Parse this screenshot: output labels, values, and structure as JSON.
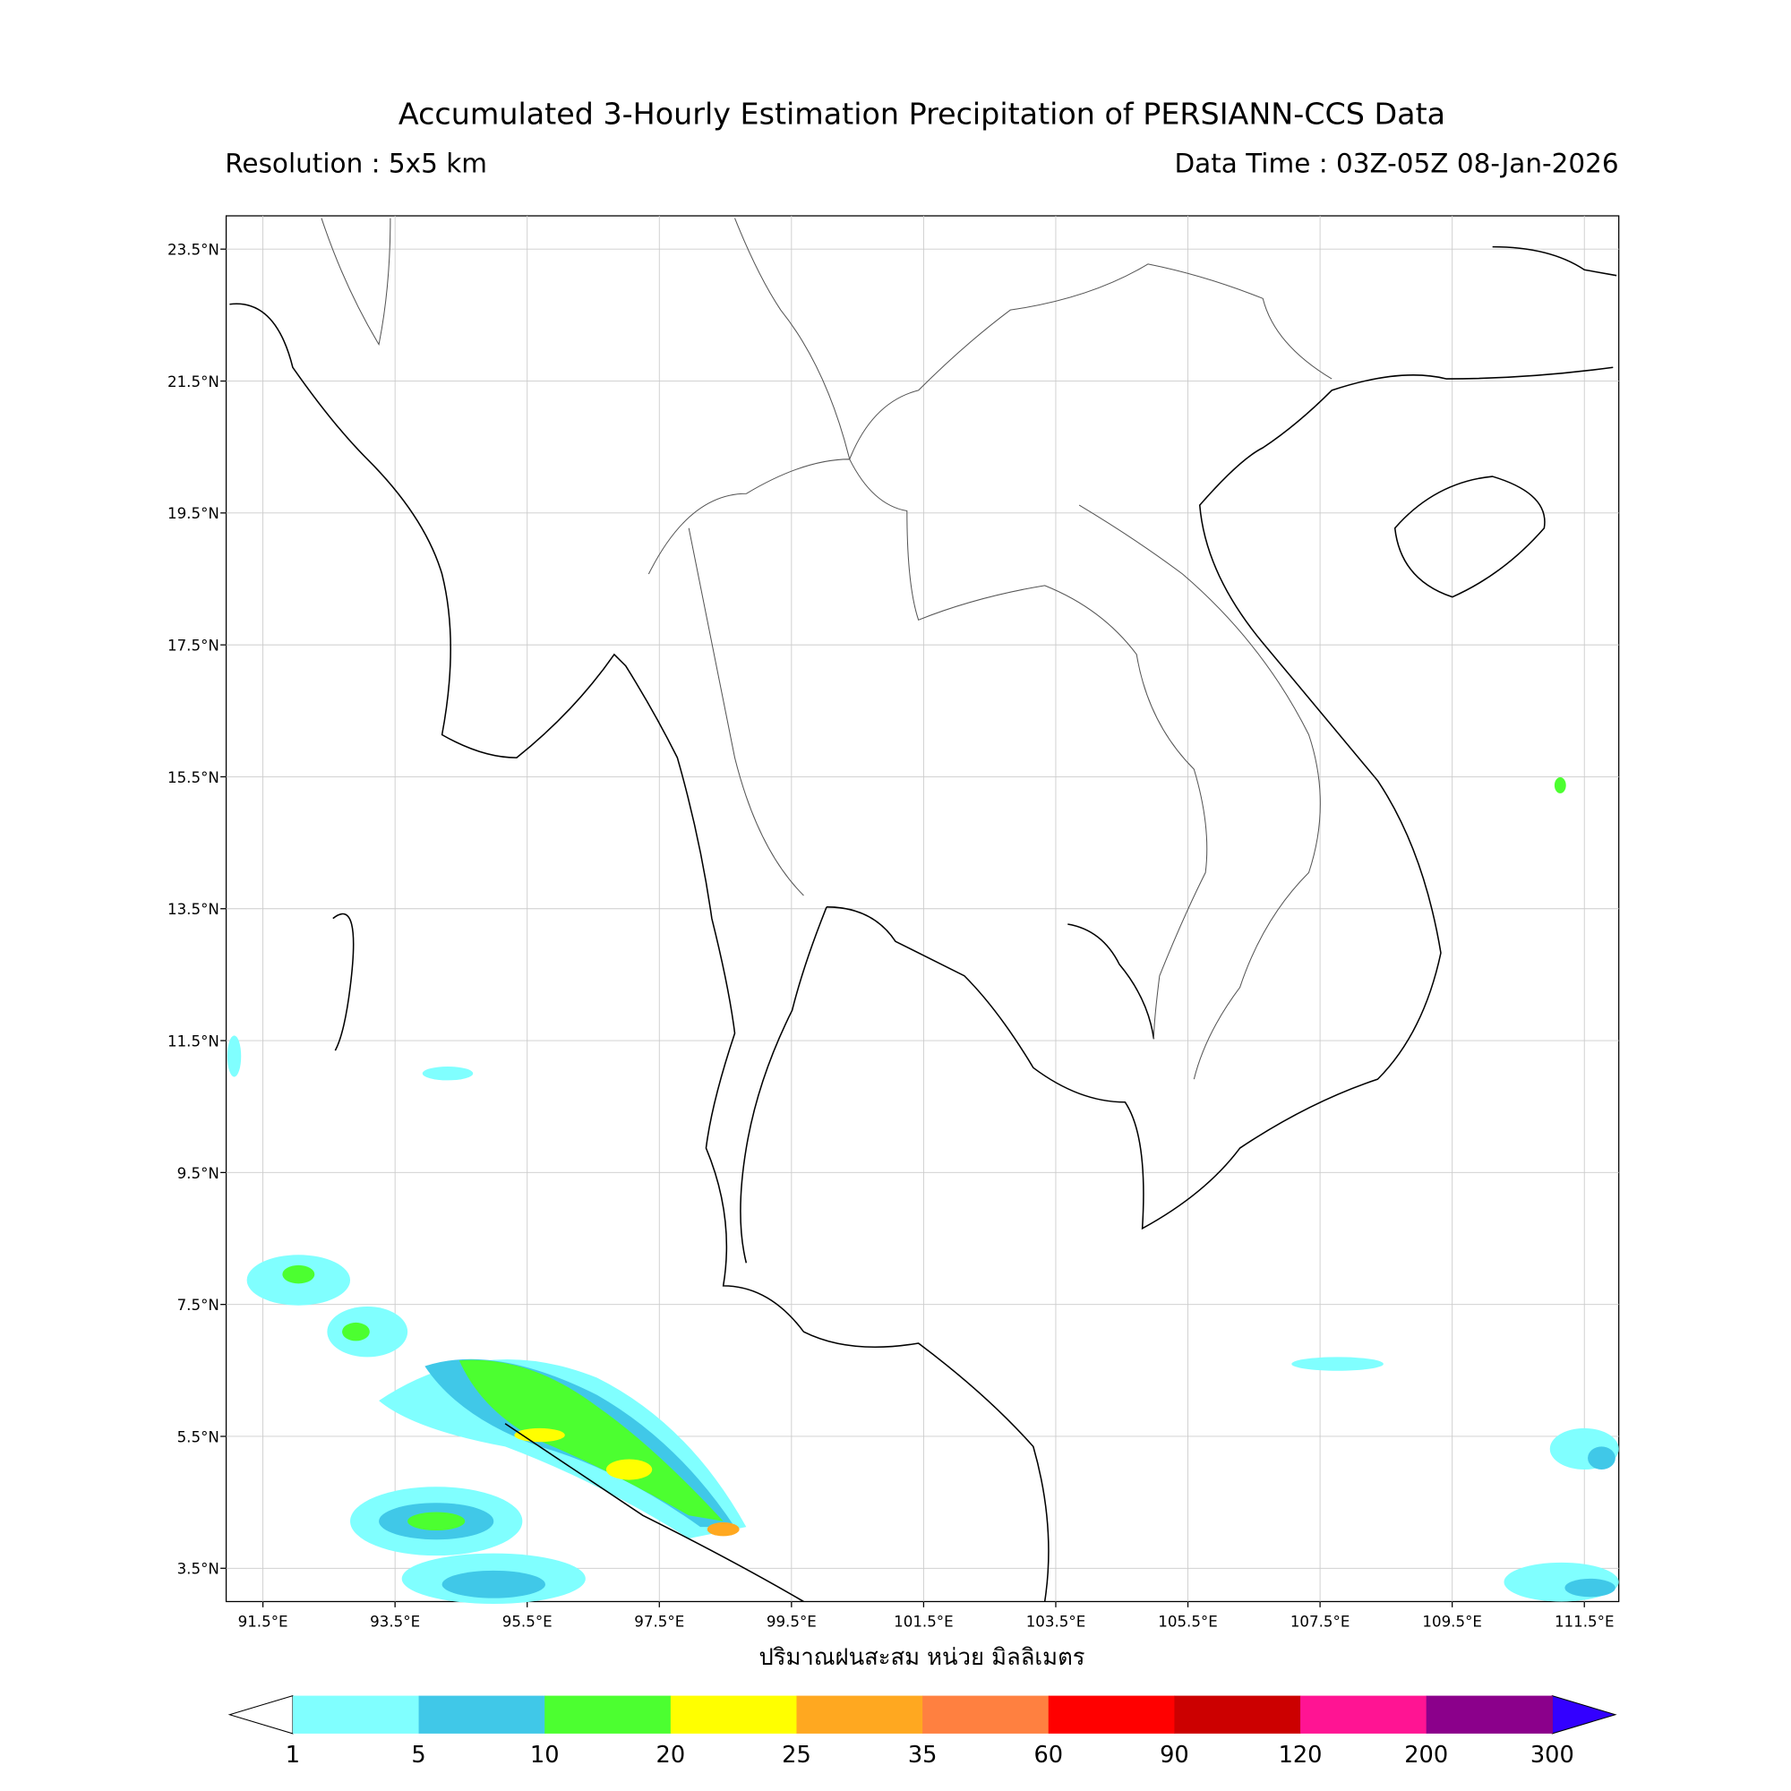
{
  "map": {
    "title": "Accumulated 3-Hourly Estimation Precipitation of PERSIANN-CCS Data",
    "resolution": "Resolution : 5x5 km",
    "data_time": "Data Time : 03Z-05Z 08-Jan-2026",
    "lat_labels": [
      "23.5°N",
      "21.5°N",
      "19.5°N",
      "17.5°N",
      "15.5°N",
      "13.5°N",
      "11.5°N",
      "9.5°N",
      "7.5°N",
      "5.5°N",
      "3.5°N"
    ],
    "lon_labels": [
      "91.5°E",
      "93.5°E",
      "95.5°E",
      "97.5°E",
      "99.5°E",
      "101.5°E",
      "103.5°E",
      "105.5°E",
      "107.5°E",
      "109.5°E",
      "111.5°E"
    ],
    "x_label": "ปริมาณฝนสะสม หน่วย มิลลิเมตร",
    "colorbar": {
      "levels": [
        1,
        5,
        10,
        20,
        25,
        35,
        60,
        90,
        120,
        200,
        300
      ],
      "colors": [
        "#80ffff",
        "#40c8e8",
        "#4cff30",
        "#ffff00",
        "#ffa820",
        "#ff8040",
        "#ff0000",
        "#cc0000",
        "#ff1493",
        "#8b008b"
      ],
      "under_color": "#ffffff",
      "over_color": "#3300ff"
    }
  }
}
